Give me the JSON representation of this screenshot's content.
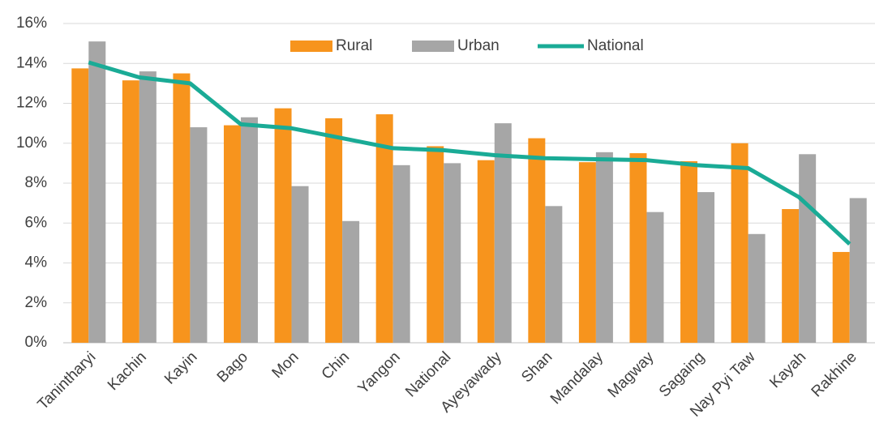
{
  "chart_data": {
    "type": "bar",
    "categories": [
      "Tanintharyi",
      "Kachin",
      "Kayin",
      "Bago",
      "Mon",
      "Chin",
      "Yangon",
      "National",
      "Ayeyawady",
      "Shan",
      "Mandalay",
      "Magway",
      "Sagaing",
      "Nay Pyi Taw",
      "Kayah",
      "Rakhine"
    ],
    "series": [
      {
        "name": "Rural",
        "type": "bar",
        "color": "#f7941d",
        "values": [
          13.75,
          13.15,
          13.5,
          10.9,
          11.75,
          11.25,
          11.45,
          9.85,
          9.15,
          10.25,
          9.05,
          9.5,
          9.1,
          10.0,
          6.7,
          4.55
        ]
      },
      {
        "name": "Urban",
        "type": "bar",
        "color": "#a6a6a6",
        "values": [
          15.1,
          13.6,
          10.8,
          11.3,
          7.85,
          6.1,
          8.9,
          9.0,
          11.0,
          6.85,
          9.55,
          6.55,
          7.55,
          5.45,
          9.45,
          7.25
        ]
      },
      {
        "name": "National",
        "type": "line",
        "color": "#1aab96",
        "values": [
          14.05,
          13.3,
          13.0,
          10.95,
          10.75,
          10.25,
          9.75,
          9.65,
          9.4,
          9.25,
          9.2,
          9.15,
          8.9,
          8.75,
          7.3,
          4.95
        ]
      }
    ],
    "ylim": [
      0,
      16
    ],
    "yticks": [
      {
        "value": 0,
        "label": "0%"
      },
      {
        "value": 2,
        "label": "2%"
      },
      {
        "value": 4,
        "label": "4%"
      },
      {
        "value": 6,
        "label": "6%"
      },
      {
        "value": 8,
        "label": "8%"
      },
      {
        "value": 10,
        "label": "10%"
      },
      {
        "value": 12,
        "label": "12%"
      },
      {
        "value": 14,
        "label": "14%"
      },
      {
        "value": 16,
        "label": "16%"
      }
    ],
    "grid": true,
    "legend": "top"
  }
}
